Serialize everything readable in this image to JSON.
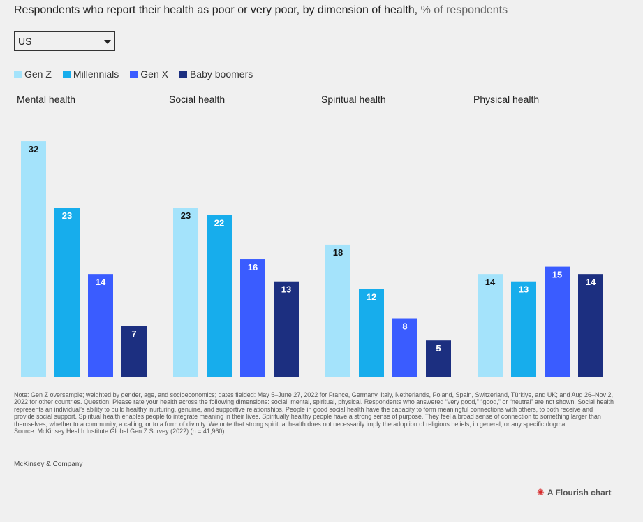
{
  "header": {
    "title": "Respondents who report their health as poor or very poor, by dimension of health,",
    "subtitle": "% of respondents"
  },
  "dropdown": {
    "selected": "US"
  },
  "colors": {
    "gen_z": "#a4e3fb",
    "millennials": "#17adec",
    "gen_x": "#3a5cff",
    "baby_boomers": "#1c2f80",
    "label_dark": "#111111",
    "label_light": "#ffffff"
  },
  "chart_data": {
    "type": "bar",
    "title": "Respondents who report their health as poor or very poor, by dimension of health, % of respondents",
    "facets": [
      "Mental health",
      "Social health",
      "Spiritual health",
      "Physical health"
    ],
    "series": [
      {
        "name": "Gen Z",
        "values": [
          32,
          23,
          18,
          14
        ]
      },
      {
        "name": "Millennials",
        "values": [
          23,
          22,
          12,
          13
        ]
      },
      {
        "name": "Gen X",
        "values": [
          14,
          16,
          8,
          15
        ]
      },
      {
        "name": "Baby boomers",
        "values": [
          7,
          13,
          5,
          14
        ]
      }
    ],
    "ylim": [
      0,
      36
    ],
    "grid": false,
    "legend": "top-left",
    "data_labels": true
  },
  "footer": {
    "note": "Note: Gen Z oversample; weighted by gender, age, and socioeconomics; dates fielded: May 5–June 27, 2022 for France, Germany, Italy, Netherlands, Poland, Spain, Switzerland, Türkiye, and UK; and Aug 26–Nov 2, 2022 for other countries. Question: Please rate your health across the following dimensions: social, mental, spiritual, physical. Respondents who answered “very good,” “good,” or “neutral” are not shown. Social health represents an individual’s ability to build healthy, nurturing, genuine, and supportive relationships. People in good social health have the capacity to form meaningful connections with others, to both receive and provide social support. Spiritual health enables people to integrate meaning in their lives. Spiritually healthy people have a strong sense of purpose. They feel a broad sense of connection to something larger than themselves, whether to a community, a calling, or to a form of divinity. We note that strong spiritual health does not necessarily imply the adoption of religious beliefs, in general, or any specific dogma.",
    "source": "Source: McKinsey Health Institute Global Gen Z Survey (2022) (n = 41,960)",
    "brand": "McKinsey & Company",
    "flourish_label": "A Flourish chart",
    "flourish_icon": "flourish-logo-icon"
  }
}
